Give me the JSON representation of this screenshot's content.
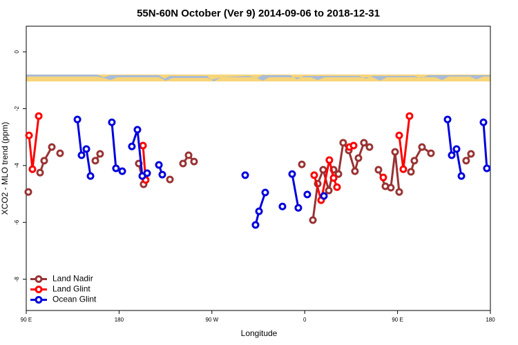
{
  "chart_data": {
    "type": "line",
    "title": "55N-60N October (Ver 9)   2014-09-06 to 2018-12-31",
    "x_label": "Longitude",
    "y_label": "XCO2 - MLO trend (ppm)",
    "xlim": [
      90,
      540
    ],
    "xticks": [
      {
        "value": 90,
        "label": "90 E"
      },
      180,
      {
        "value": 270,
        "label": "90 W"
      },
      {
        "value": 360,
        "label": "0"
      },
      {
        "value": 450,
        "label": "90 E"
      },
      {
        "value": 540,
        "label": "180"
      }
    ],
    "ylim": [
      -9.1,
      0.9
    ],
    "yticks": [
      0,
      -2,
      -4,
      -6,
      -8
    ],
    "legend": "bottom-left",
    "series": [
      {
        "name": "Land Nadir",
        "color": "#993333",
        "x": [
          92.0,
          null,
          103.4,
          107.4,
          114.8,
          null,
          122.8,
          null,
          157.0,
          161.6,
          null,
          199.1,
          203.8,
          null,
          229.3,
          null,
          242.0,
          247.4,
          252.7,
          null,
          357.2,
          null,
          367.9,
          372.6,
          377.9,
          383.3,
          388.0,
          392.7,
          397.3,
          402.7,
          408.7,
          412.1,
          417.4,
          422.8,
          null,
          431.5,
          438.2,
          443.5,
          447.6,
          451.6,
          null,
          463.0,
          466.3,
          473.7,
          482.4,
          null,
          516.5,
          521.2
        ],
        "values": [
          -4.93,
          null,
          -4.25,
          -3.83,
          -3.35,
          null,
          -3.57,
          null,
          -3.83,
          -3.59,
          null,
          -3.93,
          -4.66,
          null,
          -4.49,
          null,
          -3.93,
          -3.64,
          -3.86,
          null,
          -3.96,
          null,
          -5.92,
          -4.64,
          -4.15,
          -4.88,
          -4.15,
          -4.3,
          -3.2,
          -3.47,
          -4.2,
          -3.74,
          -3.2,
          -3.35,
          null,
          -4.15,
          -4.73,
          -4.78,
          -3.52,
          -4.93,
          null,
          -4.22,
          -3.83,
          -3.35,
          -3.57,
          null,
          -3.83,
          -3.59
        ]
      },
      {
        "name": "Land Glint",
        "color": "#ff0000",
        "x": [
          92.7,
          96.0,
          102.1,
          null,
          203.2,
          205.8,
          null,
          369.2,
          375.9,
          383.9,
          388.0,
          391.3,
          null,
          403.4,
          407.4,
          null,
          436.2,
          null,
          451.6,
          455.6,
          461.6
        ],
        "values": [
          -2.94,
          -4.13,
          -2.26,
          null,
          -3.3,
          -4.51,
          null,
          -4.34,
          -5.22,
          -3.81,
          -4.44,
          -4.76,
          null,
          -3.35,
          -3.3,
          null,
          -4.42,
          null,
          -2.94,
          -4.13,
          -2.26
        ]
      },
      {
        "name": "Ocean Glint",
        "color": "#0000dd",
        "x": [
          139.6,
          143.6,
          148.3,
          152.3,
          null,
          173.0,
          177.0,
          183.1,
          null,
          192.4,
          197.8,
          202.5,
          207.2,
          null,
          218.6,
          221.9,
          null,
          302.3,
          null,
          312.3,
          315.7,
          321.7,
          null,
          338.4,
          null,
          347.8,
          353.8,
          null,
          362.5,
          null,
          378.6,
          null,
          498.5,
          502.5,
          507.2,
          511.9,
          null,
          533.3,
          536.6
        ],
        "values": [
          -2.38,
          -3.64,
          -3.42,
          -4.37,
          null,
          -2.48,
          -4.1,
          -4.2,
          null,
          -3.33,
          -2.74,
          -4.37,
          -4.27,
          null,
          -3.98,
          -4.32,
          null,
          -4.34,
          null,
          -6.09,
          -5.61,
          -4.95,
          null,
          -5.44,
          null,
          -4.3,
          -5.49,
          null,
          -5.02,
          null,
          -5.07,
          null,
          -2.38,
          -3.64,
          -3.42,
          -4.37,
          null,
          -2.48,
          -4.1
        ]
      }
    ]
  }
}
